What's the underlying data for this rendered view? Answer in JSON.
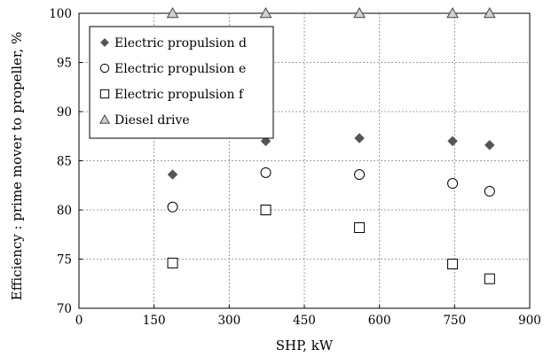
{
  "chart_data": {
    "type": "scatter",
    "title": "",
    "xlabel": "SHP, kW",
    "ylabel": "Efficiency : prime mover to propeller, %",
    "xlim": [
      0,
      900
    ],
    "ylim": [
      70,
      100
    ],
    "x_ticks": [
      0,
      150,
      300,
      450,
      600,
      750,
      900
    ],
    "y_ticks": [
      70,
      75,
      80,
      85,
      90,
      95,
      100
    ],
    "grid": true,
    "legend_position": "top-left",
    "series": [
      {
        "name": "Electric propulsion d",
        "marker": "diamond-filled",
        "color": "#555555",
        "x": [
          187,
          373,
          560,
          746,
          820
        ],
        "y": [
          83.6,
          87.0,
          87.3,
          87.0,
          86.6
        ]
      },
      {
        "name": "Electric propulsion e",
        "marker": "circle-open",
        "color": "#000000",
        "x": [
          187,
          373,
          560,
          746,
          820
        ],
        "y": [
          80.3,
          83.8,
          83.6,
          82.7,
          81.9
        ]
      },
      {
        "name": "Electric propulsion f",
        "marker": "square-open",
        "color": "#000000",
        "x": [
          187,
          373,
          560,
          746,
          820
        ],
        "y": [
          74.6,
          80.0,
          78.2,
          74.5,
          73.0
        ]
      },
      {
        "name": "Diesel drive",
        "marker": "triangle-open",
        "color": "#000000",
        "x": [
          187,
          373,
          560,
          746,
          820
        ],
        "y": [
          100,
          100,
          100,
          100,
          100
        ]
      }
    ]
  }
}
